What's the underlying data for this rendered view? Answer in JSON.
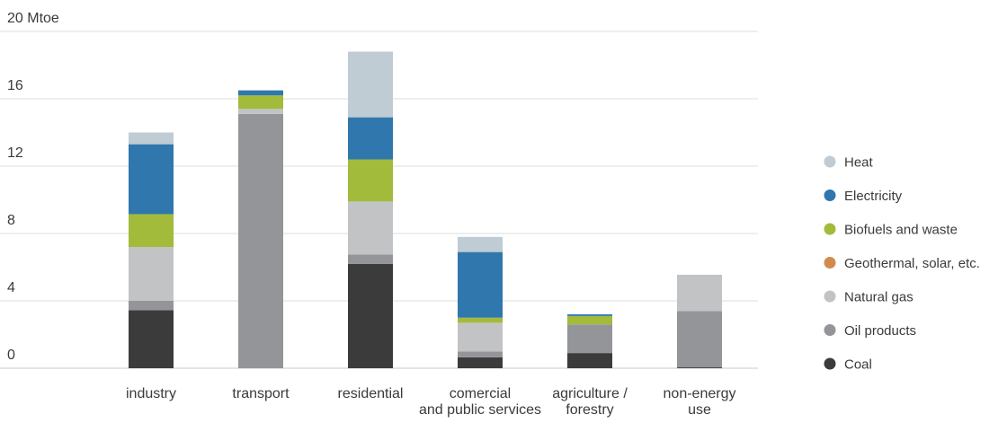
{
  "chart_data": {
    "type": "bar",
    "stacked": true,
    "unit": "Mtoe",
    "categories": [
      [
        "industry"
      ],
      [
        "transport"
      ],
      [
        "residential"
      ],
      [
        "comercial",
        "and public services"
      ],
      [
        "agriculture /",
        "forestry"
      ],
      [
        "non-energy",
        "use"
      ]
    ],
    "series": [
      {
        "name": "Coal",
        "color": "#3b3b3b",
        "values": [
          3.45,
          0.0,
          6.2,
          0.65,
          0.9,
          0.05
        ]
      },
      {
        "name": "Oil products",
        "color": "#939598",
        "values": [
          0.55,
          15.1,
          0.55,
          0.35,
          1.7,
          3.35
        ]
      },
      {
        "name": "Natural gas",
        "color": "#c2c3c5",
        "values": [
          3.2,
          0.3,
          3.15,
          1.7,
          0.0,
          2.15
        ]
      },
      {
        "name": "Geothermal, solar, etc.",
        "color": "#d28b4e",
        "values": [
          0.0,
          0.0,
          0.0,
          0.0,
          0.0,
          0.0
        ]
      },
      {
        "name": "Biofuels and waste",
        "color": "#a2bb3b",
        "values": [
          1.95,
          0.8,
          2.5,
          0.3,
          0.5,
          0.0
        ]
      },
      {
        "name": "Electricity",
        "color": "#2f77ac",
        "values": [
          4.15,
          0.3,
          2.5,
          3.9,
          0.1,
          0.0
        ]
      },
      {
        "name": "Heat",
        "color": "#bfccd3",
        "values": [
          0.7,
          0.0,
          3.9,
          0.9,
          0.0,
          0.0
        ]
      }
    ],
    "legend_order": [
      "Heat",
      "Electricity",
      "Biofuels and waste",
      "Geothermal, solar, etc.",
      "Natural gas",
      "Oil products",
      "Coal"
    ],
    "yticks": [
      0,
      4,
      8,
      12,
      16,
      20
    ],
    "ylim": [
      0,
      20
    ],
    "grid": true,
    "legend_position": "right"
  }
}
